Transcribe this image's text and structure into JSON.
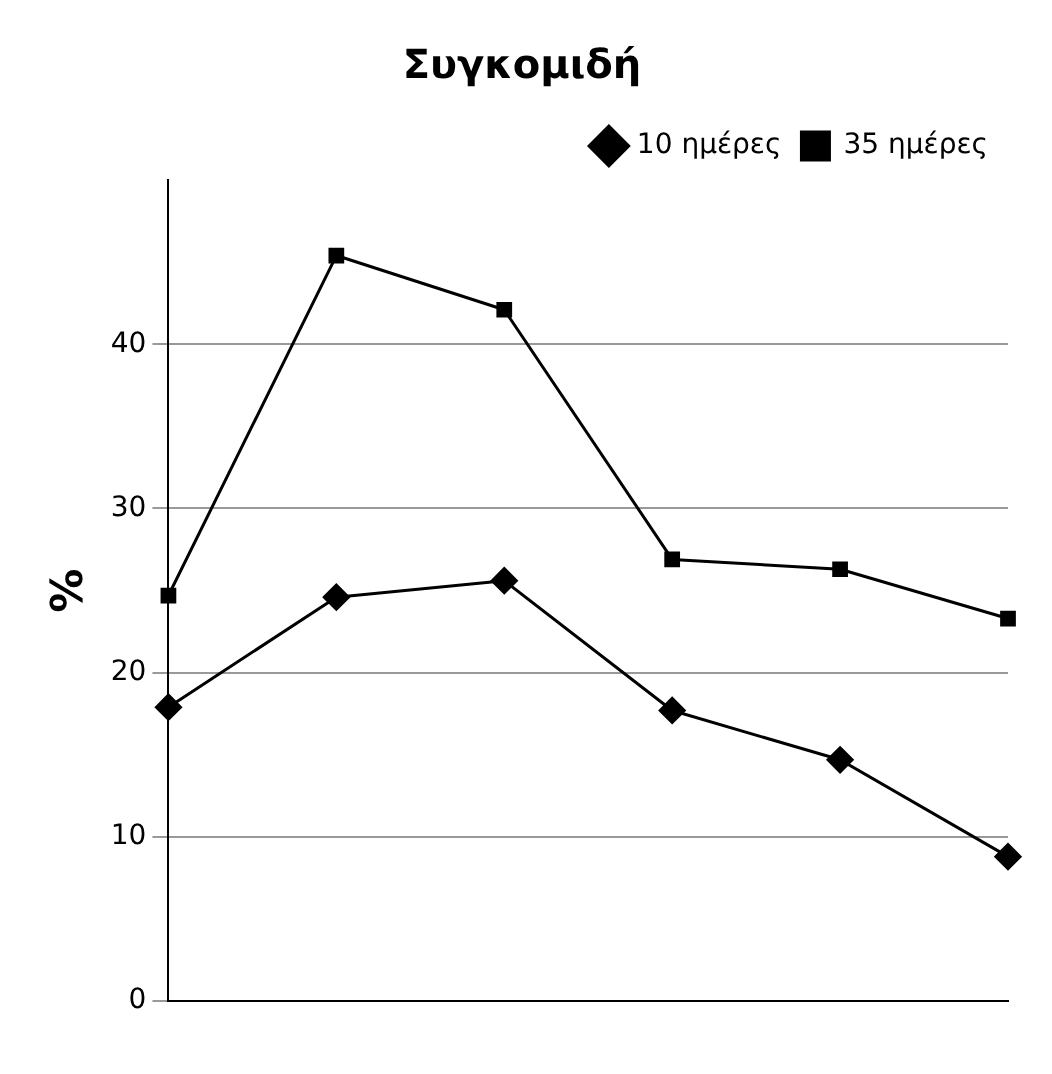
{
  "chart_data": {
    "type": "line",
    "title": "Συγκομιδή",
    "ylabel": "%",
    "categories": [
      null,
      null,
      null,
      null,
      null,
      null
    ],
    "series": [
      {
        "name": "10 ημέρες",
        "color": "#000000",
        "marker": "diamond",
        "values": [
          17.9,
          24.6,
          25.6,
          17.7,
          14.7,
          8.8
        ]
      },
      {
        "name": "35 ημέρες",
        "color": "#000000",
        "marker": "square",
        "values": [
          24.7,
          45.4,
          42.1,
          26.9,
          26.3,
          23.3
        ]
      }
    ],
    "ylim": [
      0,
      50
    ],
    "yticks": [
      0,
      10,
      20,
      30,
      40
    ],
    "grid": "y",
    "legend": "top right",
    "line_style": "solid"
  }
}
